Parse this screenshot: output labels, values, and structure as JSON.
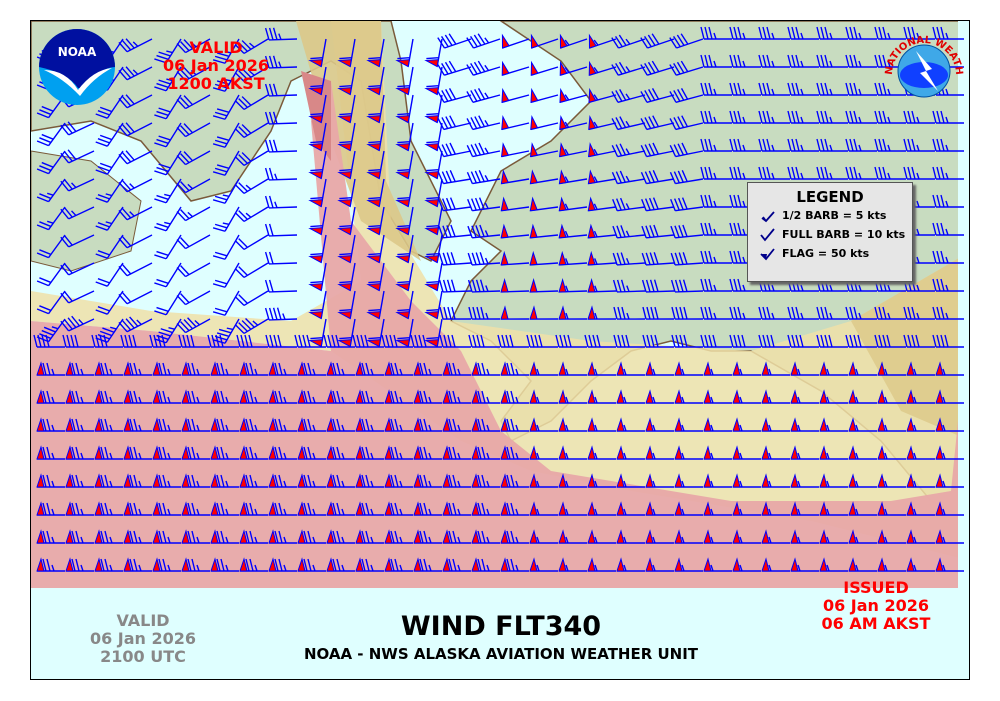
{
  "valid_local": {
    "label": "VALID",
    "date": "06 Jan 2026",
    "time": "1200 AKST"
  },
  "valid_utc": {
    "label": "VALID",
    "date": "06 Jan 2026",
    "time": "2100 UTC"
  },
  "issued": {
    "label": "ISSUED",
    "date": "06 Jan 2026",
    "time": "06 AM AKST"
  },
  "title": "WIND FLT340",
  "subtitle": "NOAA - NWS ALASKA AVIATION WEATHER UNIT",
  "legend": {
    "title": "LEGEND",
    "items": [
      {
        "icon": "half-barb-icon",
        "label": "1/2 BARB = 5 kts"
      },
      {
        "icon": "full-barb-icon",
        "label": "FULL BARB = 10 kts"
      },
      {
        "icon": "flag-icon",
        "label": "FLAG = 50 kts"
      }
    ]
  },
  "logos": {
    "noaa": "NOAA",
    "nws": "NATIONAL WEATHER SERVICE"
  },
  "colors": {
    "ocean": "#dfffff",
    "land": "#c8dcc0",
    "band_pink": "#e8a8a8",
    "band_yellow": "#f0e0a8",
    "band_tan": "#dcc888",
    "band_red": "#d88888",
    "barb": "#0000ff",
    "flag": "#ff0000",
    "valid_text": "#ff0000",
    "utc_text": "#888888"
  }
}
